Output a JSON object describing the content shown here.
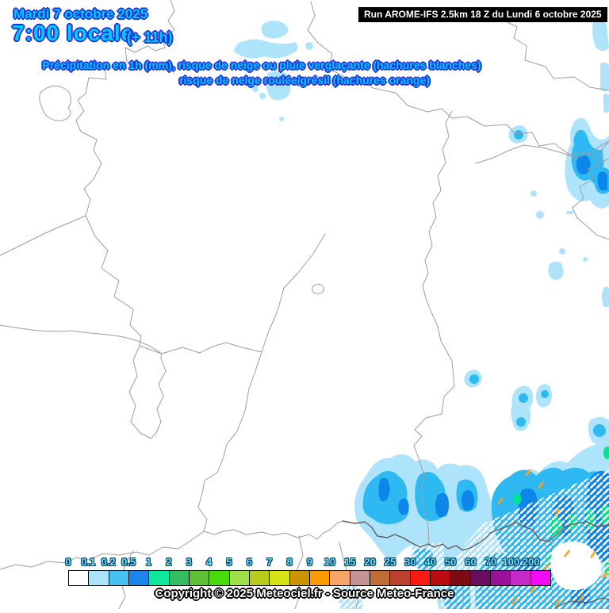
{
  "header": {
    "date": "Mardi 7 octobre 2025",
    "time": "7:00 locale",
    "offset": "(+ 11h)",
    "subtitle_line1": "Précipitation en 1h (mm), risque de neige ou pluie verglaçante (hachures blanches)",
    "subtitle_line2": "risque de neige roulée/grésil (hachures orange)",
    "run_label": "Run AROME-IFS 2.5km 18 Z du Lundi 6 octobre 2025"
  },
  "footer": {
    "copyright": "Copyright © 2025 Meteociel.fr - Source Meteo-France"
  },
  "legend": {
    "unit": "mm",
    "values": [
      "0",
      "0.1",
      "0.2",
      "0.5",
      "1",
      "2",
      "3",
      "4",
      "5",
      "6",
      "7",
      "8",
      "9",
      "10",
      "15",
      "20",
      "25",
      "30",
      "40",
      "50",
      "60",
      "70",
      "100",
      "200"
    ],
    "colors": [
      "#ffffff",
      "#aee3fc",
      "#46c1f1",
      "#1d86ec",
      "#0fe89a",
      "#35bd62",
      "#5fbf35",
      "#4adb0c",
      "#9fe04a",
      "#b8cc1d",
      "#d8e316",
      "#cc9405",
      "#fc9b00",
      "#f6a468",
      "#c39395",
      "#bf6d35",
      "#bc4030",
      "#f71b10",
      "#bc0b10",
      "#7d0a14",
      "#6a0d60",
      "#9c109c",
      "#c72bc7",
      "#f50af5"
    ]
  },
  "map_colors": {
    "precip_light": "#aee3fc",
    "precip_medium": "#2fb9f2",
    "precip_heavy": "#0c86e9",
    "precip_intense": "#00e591",
    "border_gray": "#9d9d9d",
    "border_dark": "#5f5f5f",
    "snow_hatch": "#ffffff",
    "graupel_hatch": "#ffa010",
    "title_cyan": "#00ccff",
    "title_outline_blue": "#2230dd"
  }
}
